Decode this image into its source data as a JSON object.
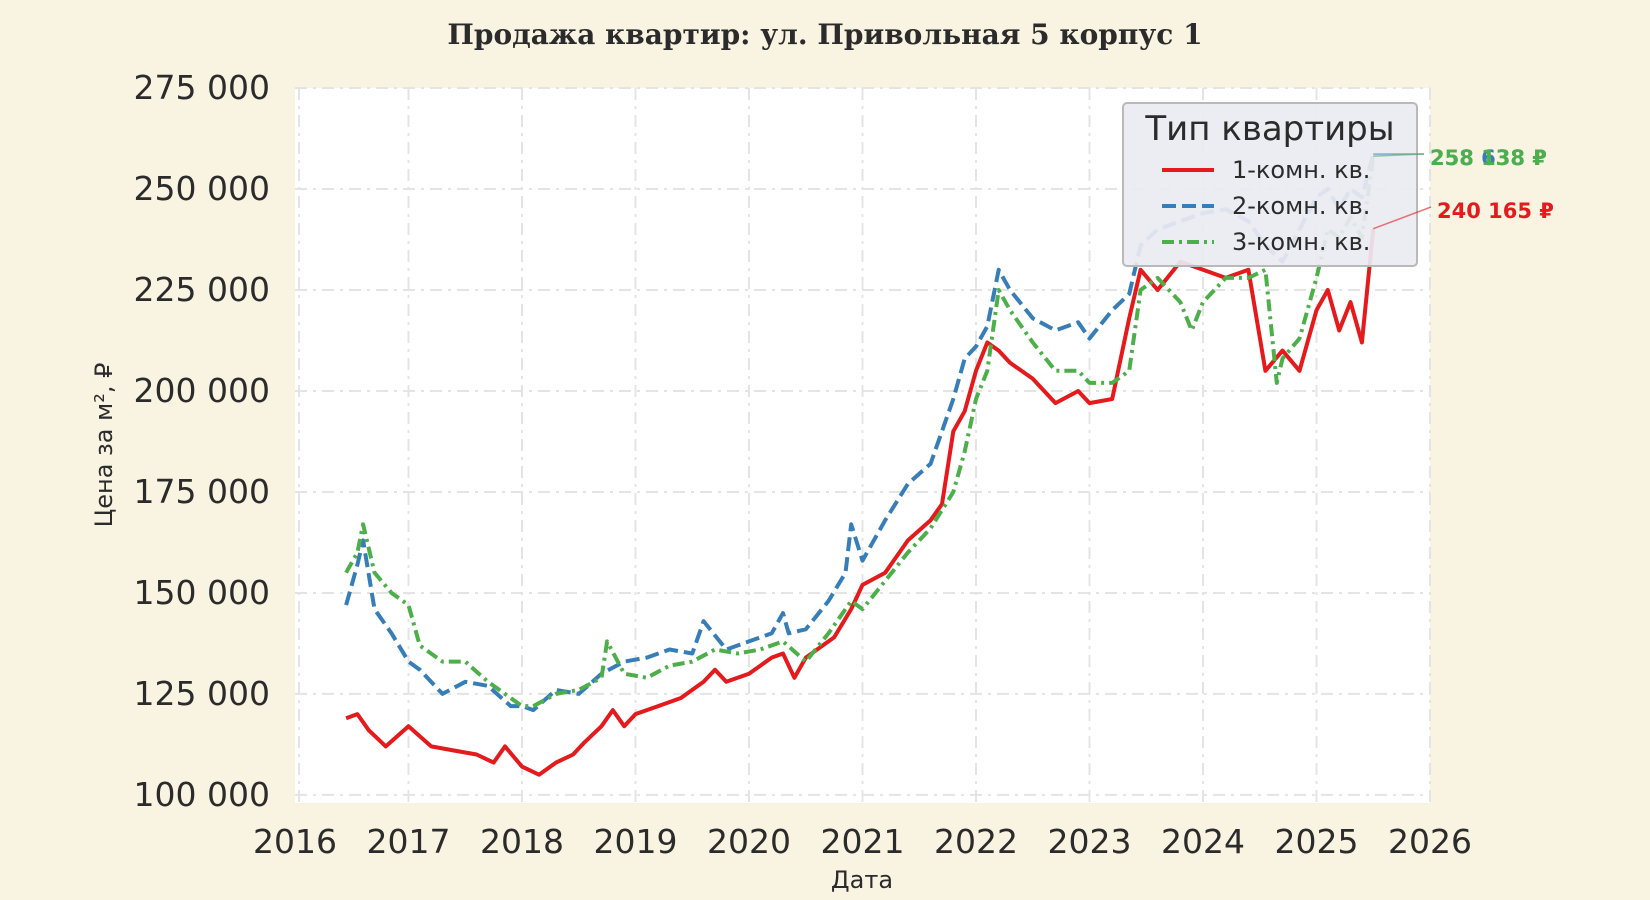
{
  "chart_data": {
    "type": "line",
    "title": "Продажа квартир: ул. Привольная 5 корпус 1",
    "xlabel": "Дата",
    "ylabel": "Цена за м², ₽",
    "xlim": [
      2016,
      2026
    ],
    "ylim": [
      98000,
      275000
    ],
    "xticks": [
      2016,
      2017,
      2018,
      2019,
      2020,
      2021,
      2022,
      2023,
      2024,
      2025,
      2026
    ],
    "xtick_labels": [
      "2016",
      "2017",
      "2018",
      "2019",
      "2020",
      "2021",
      "2022",
      "2023",
      "2024",
      "2025",
      "2026"
    ],
    "yticks": [
      100000,
      125000,
      150000,
      175000,
      200000,
      225000,
      250000,
      275000
    ],
    "ytick_labels": [
      "100 000",
      "125 000",
      "150 000",
      "175 000",
      "200 000",
      "225 000",
      "250 000",
      "275 000"
    ],
    "grid": true,
    "legend": {
      "title": "Тип квартиры",
      "placement": "top-right"
    },
    "series": [
      {
        "name": "1-комн. кв.",
        "color": "#e41a1c",
        "dash": "solid",
        "end_label": "240 165 ₽",
        "x": [
          2016.45,
          2016.55,
          2016.65,
          2016.8,
          2017.0,
          2017.2,
          2017.4,
          2017.6,
          2017.75,
          2017.85,
          2018.0,
          2018.15,
          2018.3,
          2018.45,
          2018.55,
          2018.7,
          2018.8,
          2018.9,
          2019.0,
          2019.2,
          2019.4,
          2019.6,
          2019.7,
          2019.8,
          2020.0,
          2020.2,
          2020.3,
          2020.4,
          2020.5,
          2020.6,
          2020.75,
          2020.9,
          2021.0,
          2021.2,
          2021.4,
          2021.6,
          2021.7,
          2021.8,
          2021.9,
          2022.0,
          2022.1,
          2022.2,
          2022.3,
          2022.5,
          2022.7,
          2022.9,
          2023.0,
          2023.2,
          2023.35,
          2023.45,
          2023.6,
          2023.8,
          2024.0,
          2024.2,
          2024.4,
          2024.55,
          2024.7,
          2024.85,
          2025.0,
          2025.1,
          2025.2,
          2025.3,
          2025.4,
          2025.5
        ],
        "y": [
          119000,
          120000,
          116000,
          112000,
          117000,
          112000,
          111000,
          110000,
          108000,
          112000,
          107000,
          105000,
          108000,
          110000,
          113000,
          117000,
          121000,
          117000,
          120000,
          122000,
          124000,
          128000,
          131000,
          128000,
          130000,
          134000,
          135000,
          129000,
          134000,
          136000,
          139000,
          146000,
          152000,
          155000,
          163000,
          168000,
          172000,
          190000,
          195000,
          205000,
          212000,
          210000,
          207000,
          203000,
          197000,
          200000,
          197000,
          198000,
          218000,
          230000,
          225000,
          232000,
          230000,
          228000,
          230000,
          205000,
          210000,
          205000,
          220000,
          225000,
          215000,
          222000,
          212000,
          240165
        ]
      },
      {
        "name": "2-комн. кв.",
        "color": "#377eb8",
        "dash": "dashed",
        "end_label": "258 638 ₽",
        "x": [
          2016.45,
          2016.55,
          2016.6,
          2016.7,
          2016.85,
          2017.0,
          2017.1,
          2017.3,
          2017.5,
          2017.7,
          2017.9,
          2018.0,
          2018.1,
          2018.3,
          2018.5,
          2018.7,
          2018.9,
          2019.1,
          2019.3,
          2019.5,
          2019.6,
          2019.8,
          2020.0,
          2020.2,
          2020.3,
          2020.35,
          2020.5,
          2020.7,
          2020.85,
          2020.9,
          2021.0,
          2021.2,
          2021.4,
          2021.6,
          2021.8,
          2021.9,
          2022.0,
          2022.1,
          2022.2,
          2022.3,
          2022.5,
          2022.7,
          2022.9,
          2023.0,
          2023.2,
          2023.35,
          2023.45,
          2023.6,
          2023.8,
          2024.0,
          2024.2,
          2024.4,
          2024.55,
          2024.7,
          2024.85,
          2025.0,
          2025.1,
          2025.2,
          2025.3,
          2025.4,
          2025.5
        ],
        "y": [
          147000,
          157000,
          163000,
          146000,
          140000,
          133000,
          131000,
          125000,
          128000,
          127000,
          122000,
          122000,
          121000,
          126000,
          125000,
          130000,
          133000,
          134000,
          136000,
          135000,
          143000,
          136000,
          138000,
          140000,
          145000,
          140000,
          141000,
          148000,
          155000,
          167000,
          158000,
          168000,
          177000,
          182000,
          198000,
          208000,
          211000,
          216000,
          230000,
          225000,
          218000,
          215000,
          217000,
          213000,
          220000,
          224000,
          236000,
          240000,
          242000,
          244000,
          245000,
          242000,
          236000,
          232000,
          240000,
          248000,
          250000,
          245000,
          250000,
          248000,
          258638
        ]
      },
      {
        "name": "3-комн. кв.",
        "color": "#4daf4a",
        "dash": "dashdot",
        "end_label": "258 138 ₽",
        "x": [
          2016.45,
          2016.55,
          2016.6,
          2016.7,
          2016.85,
          2017.0,
          2017.1,
          2017.3,
          2017.5,
          2017.7,
          2017.9,
          2018.0,
          2018.1,
          2018.3,
          2018.5,
          2018.7,
          2018.75,
          2018.9,
          2019.1,
          2019.3,
          2019.5,
          2019.7,
          2019.9,
          2020.1,
          2020.3,
          2020.5,
          2020.7,
          2020.9,
          2021.0,
          2021.2,
          2021.4,
          2021.6,
          2021.8,
          2021.9,
          2022.0,
          2022.1,
          2022.2,
          2022.3,
          2022.5,
          2022.7,
          2022.9,
          2023.0,
          2023.2,
          2023.35,
          2023.45,
          2023.6,
          2023.8,
          2023.9,
          2024.0,
          2024.2,
          2024.4,
          2024.55,
          2024.65,
          2024.7,
          2024.85,
          2025.0,
          2025.1,
          2025.2,
          2025.3,
          2025.4,
          2025.5
        ],
        "y": [
          155000,
          160000,
          167000,
          155000,
          150000,
          147000,
          137000,
          133000,
          133000,
          128000,
          124000,
          122000,
          122000,
          125000,
          126000,
          129000,
          138000,
          130000,
          129000,
          132000,
          133000,
          136000,
          135000,
          136000,
          138000,
          133000,
          140000,
          148000,
          146000,
          153000,
          160000,
          166000,
          175000,
          185000,
          198000,
          205000,
          225000,
          220000,
          212000,
          205000,
          205000,
          202000,
          202000,
          205000,
          225000,
          228000,
          222000,
          215000,
          222000,
          228000,
          228000,
          230000,
          202000,
          208000,
          213000,
          228000,
          240000,
          238000,
          243000,
          238000,
          258138
        ]
      }
    ]
  }
}
